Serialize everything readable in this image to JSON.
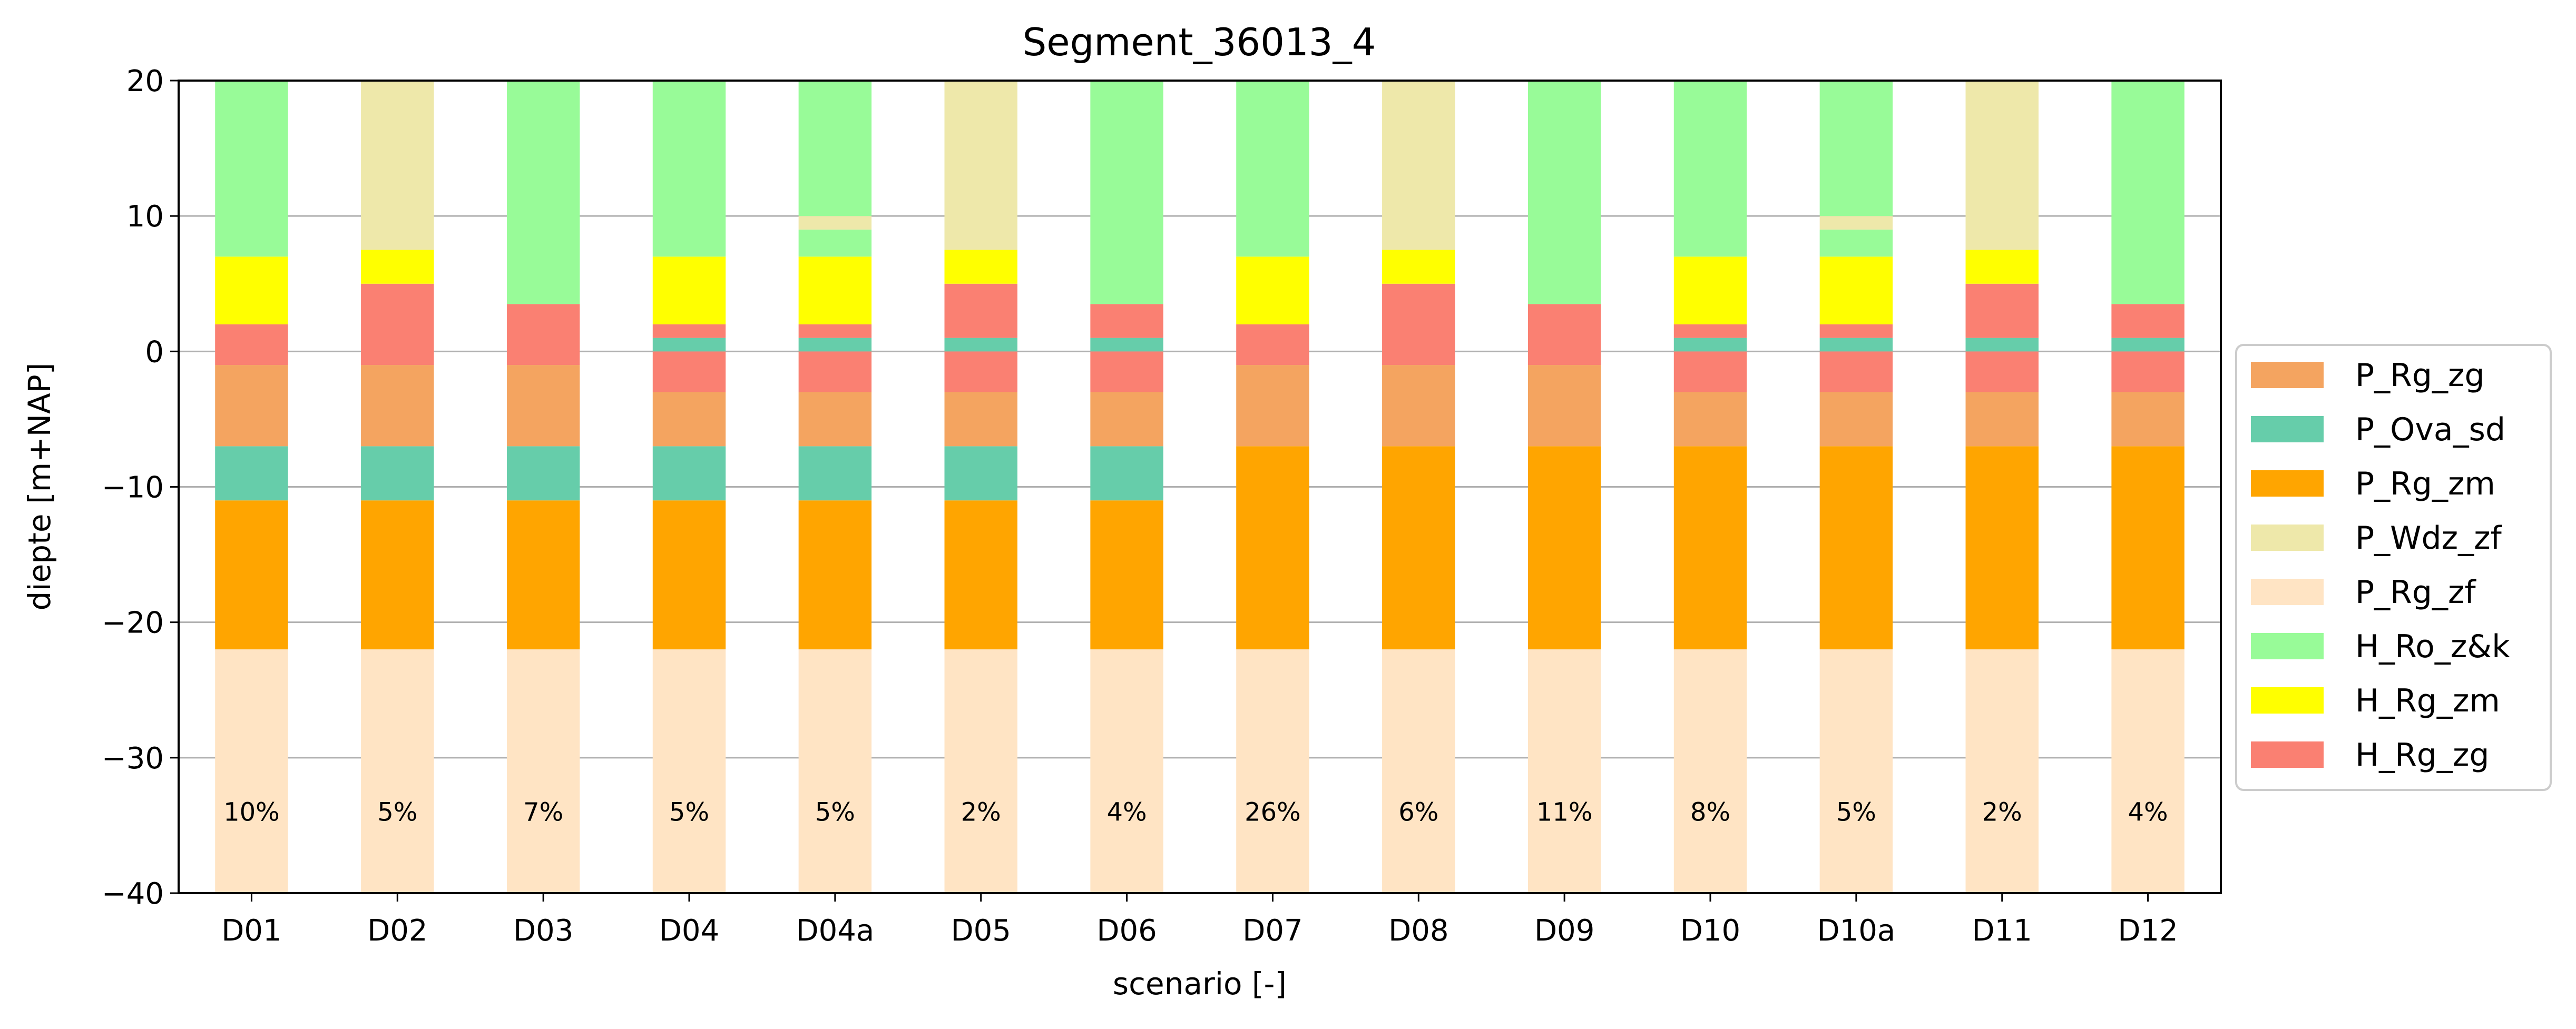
{
  "chart_data": {
    "type": "bar",
    "stacked": true,
    "title": "Segment_36013_4",
    "xlabel": "scenario [-]",
    "ylabel": "diepte [m+NAP]",
    "ylim": [
      -40,
      20
    ],
    "yticks": [
      -40,
      -30,
      -20,
      -10,
      0,
      10,
      20
    ],
    "ytick_labels": [
      "−40",
      "−30",
      "−20",
      "−10",
      "0",
      "10",
      "20"
    ],
    "grid": "horizontal",
    "legend_position": "right",
    "categories": [
      "D01",
      "D02",
      "D03",
      "D04",
      "D04a",
      "D05",
      "D06",
      "D07",
      "D08",
      "D09",
      "D10",
      "D10a",
      "D11",
      "D12"
    ],
    "bar_labels": [
      "10%",
      "5%",
      "7%",
      "5%",
      "5%",
      "2%",
      "4%",
      "26%",
      "6%",
      "11%",
      "8%",
      "5%",
      "2%",
      "4%"
    ],
    "legend": [
      {
        "name": "P_Rg_zg",
        "color": "#f4a460"
      },
      {
        "name": "P_Ova_sd",
        "color": "#66cdaa"
      },
      {
        "name": "P_Rg_zm",
        "color": "#ffa500"
      },
      {
        "name": "P_Wdz_zf",
        "color": "#eee8aa"
      },
      {
        "name": "P_Rg_zf",
        "color": "#ffe4c4"
      },
      {
        "name": "H_Ro_z&k",
        "color": "#98fb98"
      },
      {
        "name": "H_Rg_zm",
        "color": "#ffff00"
      },
      {
        "name": "H_Rg_zg",
        "color": "#fa8072"
      }
    ],
    "bars": [
      {
        "category": "D01",
        "layers": [
          {
            "name": "P_Rg_zf",
            "bottom": -40,
            "top": -22
          },
          {
            "name": "P_Rg_zm",
            "bottom": -22,
            "top": -11
          },
          {
            "name": "P_Ova_sd",
            "bottom": -11,
            "top": -7
          },
          {
            "name": "P_Rg_zg",
            "bottom": -7,
            "top": -1
          },
          {
            "name": "H_Rg_zg",
            "bottom": -1,
            "top": 2
          },
          {
            "name": "H_Rg_zm",
            "bottom": 2,
            "top": 7
          },
          {
            "name": "H_Ro_z&k",
            "bottom": 7,
            "top": 20
          }
        ]
      },
      {
        "category": "D02",
        "layers": [
          {
            "name": "P_Rg_zf",
            "bottom": -40,
            "top": -22
          },
          {
            "name": "P_Rg_zm",
            "bottom": -22,
            "top": -11
          },
          {
            "name": "P_Ova_sd",
            "bottom": -11,
            "top": -7
          },
          {
            "name": "P_Rg_zg",
            "bottom": -7,
            "top": -1
          },
          {
            "name": "H_Rg_zg",
            "bottom": -1,
            "top": 5
          },
          {
            "name": "H_Rg_zm",
            "bottom": 5,
            "top": 7.5
          },
          {
            "name": "P_Wdz_zf",
            "bottom": 7.5,
            "top": 20
          }
        ]
      },
      {
        "category": "D03",
        "layers": [
          {
            "name": "P_Rg_zf",
            "bottom": -40,
            "top": -22
          },
          {
            "name": "P_Rg_zm",
            "bottom": -22,
            "top": -11
          },
          {
            "name": "P_Ova_sd",
            "bottom": -11,
            "top": -7
          },
          {
            "name": "P_Rg_zg",
            "bottom": -7,
            "top": -1
          },
          {
            "name": "H_Rg_zg",
            "bottom": -1,
            "top": 3.5
          },
          {
            "name": "H_Ro_z&k",
            "bottom": 3.5,
            "top": 20
          }
        ]
      },
      {
        "category": "D04",
        "layers": [
          {
            "name": "P_Rg_zf",
            "bottom": -40,
            "top": -22
          },
          {
            "name": "P_Rg_zm",
            "bottom": -22,
            "top": -11
          },
          {
            "name": "P_Ova_sd",
            "bottom": -11,
            "top": -7
          },
          {
            "name": "P_Rg_zg",
            "bottom": -7,
            "top": -3
          },
          {
            "name": "H_Rg_zg",
            "bottom": -3,
            "top": 0
          },
          {
            "name": "P_Ova_sd",
            "bottom": 0,
            "top": 1
          },
          {
            "name": "H_Rg_zg",
            "bottom": 1,
            "top": 2
          },
          {
            "name": "H_Rg_zm",
            "bottom": 2,
            "top": 7
          },
          {
            "name": "H_Ro_z&k",
            "bottom": 7,
            "top": 20
          }
        ]
      },
      {
        "category": "D04a",
        "layers": [
          {
            "name": "P_Rg_zf",
            "bottom": -40,
            "top": -22
          },
          {
            "name": "P_Rg_zm",
            "bottom": -22,
            "top": -11
          },
          {
            "name": "P_Ova_sd",
            "bottom": -11,
            "top": -7
          },
          {
            "name": "P_Rg_zg",
            "bottom": -7,
            "top": -3
          },
          {
            "name": "H_Rg_zg",
            "bottom": -3,
            "top": 0
          },
          {
            "name": "P_Ova_sd",
            "bottom": 0,
            "top": 1
          },
          {
            "name": "H_Rg_zg",
            "bottom": 1,
            "top": 2
          },
          {
            "name": "H_Rg_zm",
            "bottom": 2,
            "top": 7
          },
          {
            "name": "H_Ro_z&k",
            "bottom": 7,
            "top": 9
          },
          {
            "name": "P_Wdz_zf",
            "bottom": 9,
            "top": 10
          },
          {
            "name": "H_Ro_z&k",
            "bottom": 10,
            "top": 20
          }
        ]
      },
      {
        "category": "D05",
        "layers": [
          {
            "name": "P_Rg_zf",
            "bottom": -40,
            "top": -22
          },
          {
            "name": "P_Rg_zm",
            "bottom": -22,
            "top": -11
          },
          {
            "name": "P_Ova_sd",
            "bottom": -11,
            "top": -7
          },
          {
            "name": "P_Rg_zg",
            "bottom": -7,
            "top": -3
          },
          {
            "name": "H_Rg_zg",
            "bottom": -3,
            "top": 0
          },
          {
            "name": "P_Ova_sd",
            "bottom": 0,
            "top": 1
          },
          {
            "name": "H_Rg_zg",
            "bottom": 1,
            "top": 5
          },
          {
            "name": "H_Rg_zm",
            "bottom": 5,
            "top": 7.5
          },
          {
            "name": "P_Wdz_zf",
            "bottom": 7.5,
            "top": 20
          }
        ]
      },
      {
        "category": "D06",
        "layers": [
          {
            "name": "P_Rg_zf",
            "bottom": -40,
            "top": -22
          },
          {
            "name": "P_Rg_zm",
            "bottom": -22,
            "top": -11
          },
          {
            "name": "P_Ova_sd",
            "bottom": -11,
            "top": -7
          },
          {
            "name": "P_Rg_zg",
            "bottom": -7,
            "top": -3
          },
          {
            "name": "H_Rg_zg",
            "bottom": -3,
            "top": 0
          },
          {
            "name": "P_Ova_sd",
            "bottom": 0,
            "top": 1
          },
          {
            "name": "H_Rg_zg",
            "bottom": 1,
            "top": 3.5
          },
          {
            "name": "H_Ro_z&k",
            "bottom": 3.5,
            "top": 20
          }
        ]
      },
      {
        "category": "D07",
        "layers": [
          {
            "name": "P_Rg_zf",
            "bottom": -40,
            "top": -22
          },
          {
            "name": "P_Rg_zm",
            "bottom": -22,
            "top": -7
          },
          {
            "name": "P_Rg_zg",
            "bottom": -7,
            "top": -1
          },
          {
            "name": "H_Rg_zg",
            "bottom": -1,
            "top": 2
          },
          {
            "name": "H_Rg_zm",
            "bottom": 2,
            "top": 7
          },
          {
            "name": "H_Ro_z&k",
            "bottom": 7,
            "top": 20
          }
        ]
      },
      {
        "category": "D08",
        "layers": [
          {
            "name": "P_Rg_zf",
            "bottom": -40,
            "top": -22
          },
          {
            "name": "P_Rg_zm",
            "bottom": -22,
            "top": -7
          },
          {
            "name": "P_Rg_zg",
            "bottom": -7,
            "top": -1
          },
          {
            "name": "H_Rg_zg",
            "bottom": -1,
            "top": 5
          },
          {
            "name": "H_Rg_zm",
            "bottom": 5,
            "top": 7.5
          },
          {
            "name": "P_Wdz_zf",
            "bottom": 7.5,
            "top": 20
          }
        ]
      },
      {
        "category": "D09",
        "layers": [
          {
            "name": "P_Rg_zf",
            "bottom": -40,
            "top": -22
          },
          {
            "name": "P_Rg_zm",
            "bottom": -22,
            "top": -7
          },
          {
            "name": "P_Rg_zg",
            "bottom": -7,
            "top": -1
          },
          {
            "name": "H_Rg_zg",
            "bottom": -1,
            "top": 3.5
          },
          {
            "name": "H_Ro_z&k",
            "bottom": 3.5,
            "top": 20
          }
        ]
      },
      {
        "category": "D10",
        "layers": [
          {
            "name": "P_Rg_zf",
            "bottom": -40,
            "top": -22
          },
          {
            "name": "P_Rg_zm",
            "bottom": -22,
            "top": -7
          },
          {
            "name": "P_Rg_zg",
            "bottom": -7,
            "top": -3
          },
          {
            "name": "H_Rg_zg",
            "bottom": -3,
            "top": 0
          },
          {
            "name": "P_Ova_sd",
            "bottom": 0,
            "top": 1
          },
          {
            "name": "H_Rg_zg",
            "bottom": 1,
            "top": 2
          },
          {
            "name": "H_Rg_zm",
            "bottom": 2,
            "top": 7
          },
          {
            "name": "H_Ro_z&k",
            "bottom": 7,
            "top": 20
          }
        ]
      },
      {
        "category": "D10a",
        "layers": [
          {
            "name": "P_Rg_zf",
            "bottom": -40,
            "top": -22
          },
          {
            "name": "P_Rg_zm",
            "bottom": -22,
            "top": -7
          },
          {
            "name": "P_Rg_zg",
            "bottom": -7,
            "top": -3
          },
          {
            "name": "H_Rg_zg",
            "bottom": -3,
            "top": 0
          },
          {
            "name": "P_Ova_sd",
            "bottom": 0,
            "top": 1
          },
          {
            "name": "H_Rg_zg",
            "bottom": 1,
            "top": 2
          },
          {
            "name": "H_Rg_zm",
            "bottom": 2,
            "top": 7
          },
          {
            "name": "H_Ro_z&k",
            "bottom": 7,
            "top": 9
          },
          {
            "name": "P_Wdz_zf",
            "bottom": 9,
            "top": 10
          },
          {
            "name": "H_Ro_z&k",
            "bottom": 10,
            "top": 20
          }
        ]
      },
      {
        "category": "D11",
        "layers": [
          {
            "name": "P_Rg_zf",
            "bottom": -40,
            "top": -22
          },
          {
            "name": "P_Rg_zm",
            "bottom": -22,
            "top": -7
          },
          {
            "name": "P_Rg_zg",
            "bottom": -7,
            "top": -3
          },
          {
            "name": "H_Rg_zg",
            "bottom": -3,
            "top": 0
          },
          {
            "name": "P_Ova_sd",
            "bottom": 0,
            "top": 1
          },
          {
            "name": "H_Rg_zg",
            "bottom": 1,
            "top": 5
          },
          {
            "name": "H_Rg_zm",
            "bottom": 5,
            "top": 7.5
          },
          {
            "name": "P_Wdz_zf",
            "bottom": 7.5,
            "top": 20
          }
        ]
      },
      {
        "category": "D12",
        "layers": [
          {
            "name": "P_Rg_zf",
            "bottom": -40,
            "top": -22
          },
          {
            "name": "P_Rg_zm",
            "bottom": -22,
            "top": -7
          },
          {
            "name": "P_Rg_zg",
            "bottom": -7,
            "top": -3
          },
          {
            "name": "H_Rg_zg",
            "bottom": -3,
            "top": 0
          },
          {
            "name": "P_Ova_sd",
            "bottom": 0,
            "top": 1
          },
          {
            "name": "H_Rg_zg",
            "bottom": 1,
            "top": 3.5
          },
          {
            "name": "H_Ro_z&k",
            "bottom": 3.5,
            "top": 20
          }
        ]
      }
    ]
  }
}
